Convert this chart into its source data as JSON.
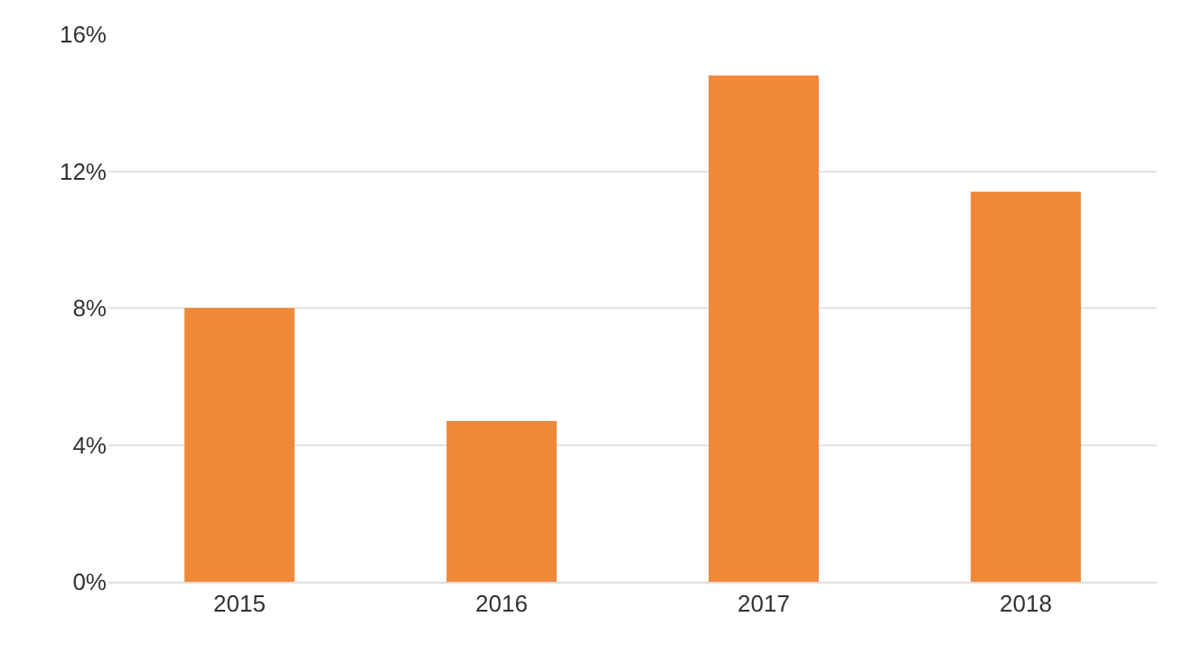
{
  "chart_data": {
    "type": "bar",
    "categories": [
      "2015",
      "2016",
      "2017",
      "2018"
    ],
    "values": [
      8.0,
      4.7,
      14.8,
      11.4
    ],
    "color": "#f0883a",
    "ylim": [
      0,
      16
    ],
    "yticks": [
      {
        "value": 0,
        "label": "0%"
      },
      {
        "value": 4,
        "label": "4%"
      },
      {
        "value": 8,
        "label": "8%"
      },
      {
        "value": 12,
        "label": "12%"
      },
      {
        "value": 16,
        "label": "16%"
      }
    ],
    "grid": "y"
  }
}
